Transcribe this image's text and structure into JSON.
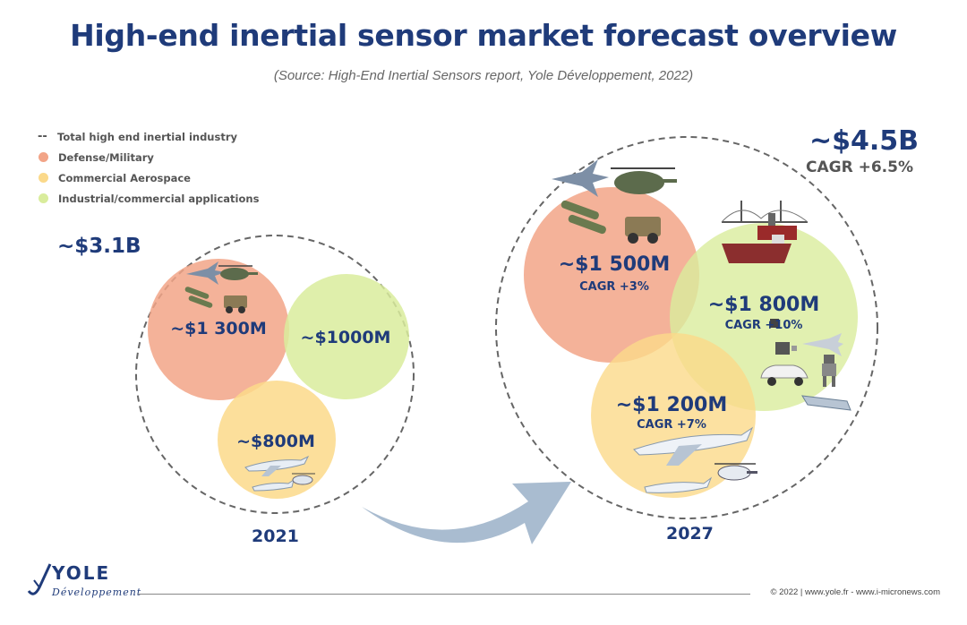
{
  "header": {
    "title": "High-end inertial sensor market forecast overview",
    "subtitle": "(Source: High-End Inertial Sensors report, Yole Développement, 2022)"
  },
  "legend": {
    "items": [
      {
        "label": "Total high end inertial industry",
        "marker": "dashed-line",
        "color": "#555555"
      },
      {
        "label": "Defense/Military",
        "marker": "dot",
        "color": "#f2a487"
      },
      {
        "label": "Commercial Aerospace",
        "marker": "dot",
        "color": "#fbd98a"
      },
      {
        "label": "Industrial/commercial applications",
        "marker": "dot",
        "color": "#d9ec9c"
      }
    ]
  },
  "diagram_2021": {
    "year": "2021",
    "total": "~$3.1B",
    "defense": {
      "value": "~$1 300M"
    },
    "industrial": {
      "value": "~$1000M"
    },
    "aerospace": {
      "value": "~$800M"
    }
  },
  "diagram_2027": {
    "year": "2027",
    "total": "~$4.5B",
    "total_cagr": "CAGR +6.5%",
    "defense": {
      "value": "~$1 500M",
      "cagr": "CAGR +3%"
    },
    "industrial": {
      "value": "~$1 800M",
      "cagr": "CAGR +10%"
    },
    "aerospace": {
      "value": "~$1 200M",
      "cagr": "CAGR +7%"
    }
  },
  "colors": {
    "defense": "#f2a487",
    "aerospace": "#fbd98a",
    "industrial": "#d9ec9c",
    "text_dark": "#1f3b7a",
    "arrow": "#a9bcd0"
  },
  "icons": [
    "fighter-jet-icon",
    "helicopter-icon",
    "missile-icon",
    "military-vehicle-icon",
    "airliner-icon",
    "business-jet-icon",
    "ship-icon",
    "oil-rig-icon",
    "bridge-icon",
    "drone-icon",
    "robot-icon",
    "car-icon",
    "satellite-icon",
    "train-icon"
  ],
  "logo": {
    "word": "YOLE",
    "sub": "Développement"
  },
  "footer": {
    "text": "© 2022 | www.yole.fr - www.i-micronews.com"
  }
}
